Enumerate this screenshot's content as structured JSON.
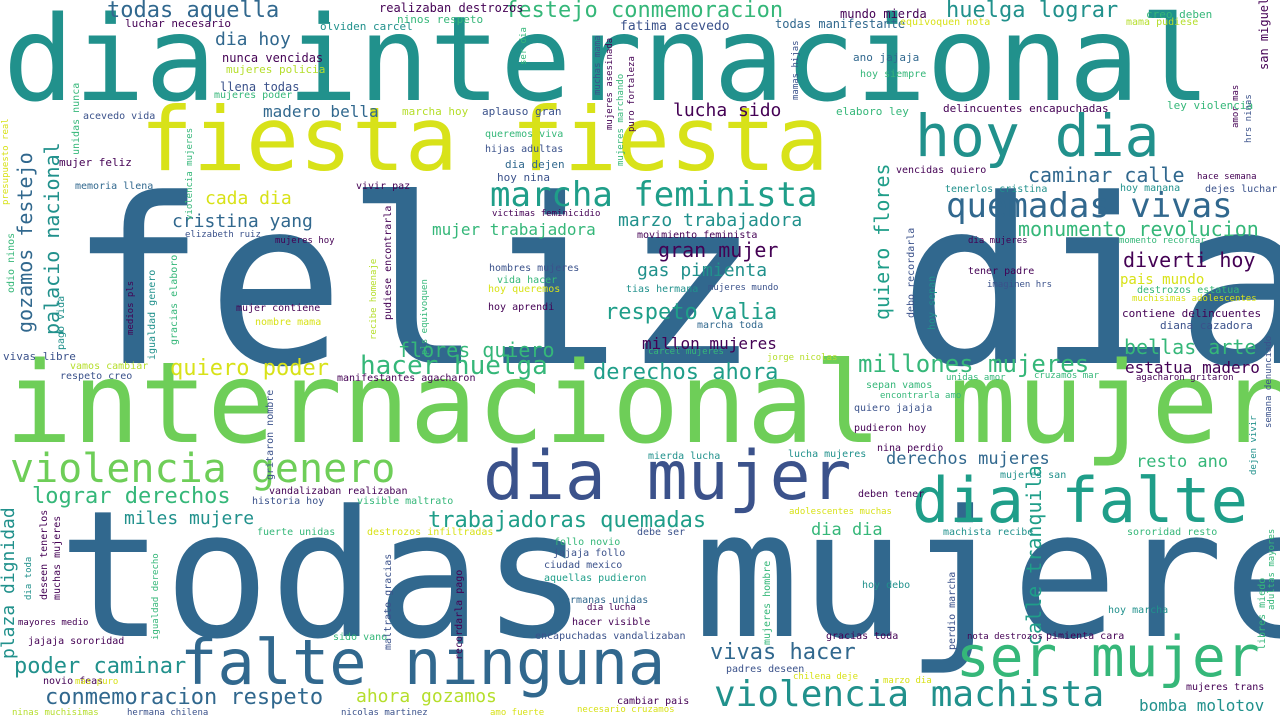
{
  "palette": {
    "purple": "#440154",
    "indigo": "#3b528b",
    "blue": "#31688e",
    "teal": "#21918c",
    "teal2": "#1f9e89",
    "green": "#35b779",
    "lime": "#6ece58",
    "yellowgreen": "#b5de2b",
    "yellow": "#d8e219"
  },
  "words": [
    "feliz dia",
    "todas mujere",
    "internacional mujer",
    "dia internacional",
    "fiesta fiesta",
    "falte ninguna",
    "dia mujer",
    "hoy dia",
    "dia falte",
    "ser mujer",
    "violencia genero",
    "marcha feminista",
    "quemadas vivas",
    "violencia machista",
    "todas aquella",
    "festejo conmemoracion",
    "huelga lograr",
    "hacer huelga",
    "millones mujeres",
    "lograr derechos",
    "trabajadoras quemadas",
    "conmemoracion respeto",
    "poder caminar",
    "vivas hacer",
    "derechos ahora",
    "quiero poder",
    "respeto valia",
    "gas pimienta",
    "gran mujer",
    "diverti hoy",
    "monumento revolucion",
    "caminar calle",
    "cristina yang",
    "mujer trabajadora",
    "marzo trabajadora",
    "cada dia",
    "dia hoy",
    "lucha sido",
    "madero bella",
    "bellas arte",
    "estatua madero",
    "derechos mujeres",
    "resto ano",
    "miles mujere",
    "dia dia",
    "millon mujeres",
    "ahora gozamos",
    "bomba molotov",
    "flores quiero",
    "quiero flores",
    "calle tranquila",
    "gozamos festejo",
    "palacio nacional",
    "plaza dignidad",
    "pais mundo"
  ],
  "small": [
    "realizaban destrozos",
    "luchar necesario",
    "ninos respeto",
    "olviden carcel",
    "fatima acevedo",
    "todas manifestante",
    "mundo mierda",
    "equivoquen nota",
    "creo deben",
    "mama pudiese",
    "nunca vencidas",
    "mujeres policia",
    "llena todas",
    "mujeres poder",
    "ano jajaja",
    "hoy siempre",
    "marcha hoy",
    "aplauso gran",
    "elaboro ley",
    "delincuentes encapuchadas",
    "ley violencia",
    "acevedo vida",
    "queremos viva",
    "hijas adultas",
    "dia dejen",
    "hoy nina",
    "mujer feliz",
    "memoria llena",
    "vivir paz",
    "vencidas quiero",
    "tenerlos cristina",
    "hoy manana",
    "dejes luchar",
    "hace semana",
    "victimas feminicidio",
    "movimiento feminista",
    "elizabeth ruiz",
    "mujeres hoy",
    "dia mujeres",
    "momento recordar",
    "tener padre",
    "imaginen hrs",
    "destrozos estatua",
    "muchisimas adolescentes",
    "hombres mujeres",
    "vida hacer",
    "hoy queremos",
    "tias hermana",
    "mujeres mundo",
    "hoy aprendi",
    "mujer contiene",
    "nombre mama",
    "marcha toda",
    "contiene delincuentes",
    "diana cazadora",
    "carcel mujeres",
    "jorge nicolas",
    "vivas libre",
    "vamos cambiar",
    "respeto creo",
    "manifestantes agacharon",
    "unidas amor",
    "cruzamos mar",
    "agacharon gritaron",
    "sepan vamos",
    "encontrarla amo",
    "quiero jajaja",
    "pudieron hoy",
    "mierda lucha",
    "lucha mujeres",
    "nina perdio",
    "mujeres san",
    "vandalizaban realizaban",
    "historia hoy",
    "visible maltrato",
    "deben tener",
    "adolescentes muchas",
    "fuerte unidas",
    "destrozos infiltradas",
    "debe ser",
    "machista recibe",
    "sororidad resto",
    "follo novio",
    "jajaja follo",
    "ciudad mexico",
    "aquellas pudieron",
    "hoy debo",
    "hermanas unidas",
    "dia lucha",
    "hacer visible",
    "hoy marcha",
    "jajaja sororidad",
    "mayores medio",
    "encapuchadas vandalizaban",
    "gracias toda",
    "nota destrozos",
    "pimienta cara",
    "sido vano",
    "padres deseen",
    "chilena deje",
    "marzo dia",
    "novio feas",
    "mas puro",
    "cambiar pais",
    "mujeres trans",
    "ninas muchisimas",
    "hermana chilena",
    "nicolas martinez",
    "amo fuerte",
    "necesario cruzamos",
    "presupuesto real",
    "unidas nunca",
    "odio ninos",
    "pago vida",
    "violencia mujeres",
    "gracias elaboro",
    "medios pls",
    "igualdad genero",
    "recibe homenaje",
    "pudiese encontrarla",
    "pls equivoquen",
    "debo recordarla",
    "hoy sepan",
    "ser dia",
    "muchas mama",
    "mamas hijas",
    "mujeres asesinada",
    "mujeres marchando",
    "puro fortaleza",
    "san miguel",
    "hrs ninas",
    "amor mas",
    "semana denunciado",
    "dejen vivir",
    "dia toda",
    "deseen tenerlos",
    "muchas mujeres",
    "igualdad derecho",
    "maltrato gracias",
    "gritaron nombre",
    "recordarla pago",
    "mujeres hombre",
    "perdio marcha",
    "libres miedo",
    "adultas mayores"
  ]
}
